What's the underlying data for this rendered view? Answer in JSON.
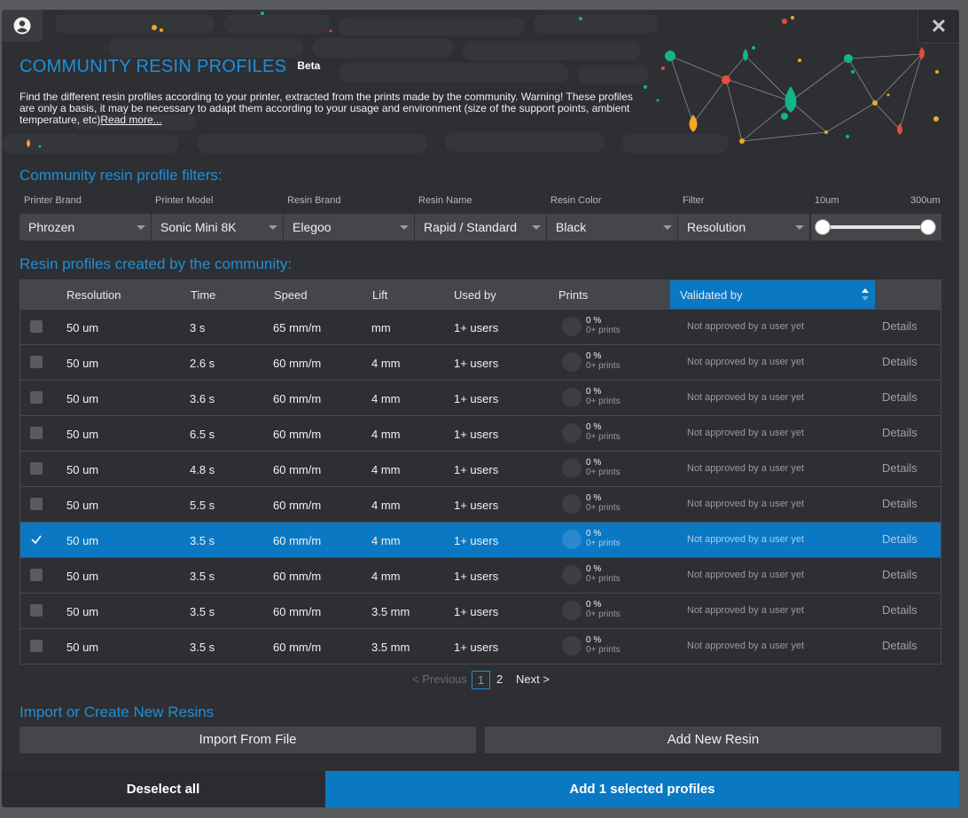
{
  "header": {
    "title": "COMMUNITY RESIN PROFILES",
    "badge": "Beta",
    "description": "Find the different resin profiles according to your printer, extracted from the prints made by the community. Warning! These profiles are only a basis, it may be necessary to adapt them according to your usage and environment (size of the support points, ambient temperature, etc)",
    "read_more": "Read more...",
    "close_icon": "close-icon",
    "user_icon": "user-circle-icon"
  },
  "filters": {
    "section_title": "Community resin profile filters:",
    "labels": {
      "printer_brand": "Printer Brand",
      "printer_model": "Printer Model",
      "resin_brand": "Resin Brand",
      "resin_name": "Resin Name",
      "resin_color": "Resin Color",
      "filter": "Filter",
      "range_min": "10um",
      "range_max": "300um"
    },
    "values": {
      "printer_brand": "Phrozen",
      "printer_model": "Sonic Mini 8K",
      "resin_brand": "Elegoo",
      "resin_name": "Rapid / Standard",
      "resin_color": "Black",
      "filter": "Resolution"
    }
  },
  "profiles": {
    "section_title": "Resin profiles created by the community:",
    "columns": {
      "resolution": "Resolution",
      "time": "Time",
      "speed": "Speed",
      "lift": "Lift",
      "used_by": "Used by",
      "prints": "Prints",
      "validated_by": "Validated by"
    },
    "rows": [
      {
        "resolution": "50 um",
        "time": "3 s",
        "speed": "65 mm/m",
        "lift": "mm",
        "used_by": "1+ users",
        "pct": "0 %",
        "prints": "0+ prints",
        "validated": "Not approved by a user yet",
        "details": "Details"
      },
      {
        "resolution": "50 um",
        "time": "2.6 s",
        "speed": "60 mm/m",
        "lift": "4 mm",
        "used_by": "1+ users",
        "pct": "0 %",
        "prints": "0+ prints",
        "validated": "Not approved by a user yet",
        "details": "Details"
      },
      {
        "resolution": "50 um",
        "time": "3.6 s",
        "speed": "60 mm/m",
        "lift": "4 mm",
        "used_by": "1+ users",
        "pct": "0 %",
        "prints": "0+ prints",
        "validated": "Not approved by a user yet",
        "details": "Details"
      },
      {
        "resolution": "50 um",
        "time": "6.5 s",
        "speed": "60 mm/m",
        "lift": "4 mm",
        "used_by": "1+ users",
        "pct": "0 %",
        "prints": "0+ prints",
        "validated": "Not approved by a user yet",
        "details": "Details"
      },
      {
        "resolution": "50 um",
        "time": "4.8 s",
        "speed": "60 mm/m",
        "lift": "4 mm",
        "used_by": "1+ users",
        "pct": "0 %",
        "prints": "0+ prints",
        "validated": "Not approved by a user yet",
        "details": "Details"
      },
      {
        "resolution": "50 um",
        "time": "5.5 s",
        "speed": "60 mm/m",
        "lift": "4 mm",
        "used_by": "1+ users",
        "pct": "0 %",
        "prints": "0+ prints",
        "validated": "Not approved by a user yet",
        "details": "Details"
      },
      {
        "resolution": "50 um",
        "time": "3.5 s",
        "speed": "60 mm/m",
        "lift": "4 mm",
        "used_by": "1+ users",
        "pct": "0 %",
        "prints": "0+ prints",
        "validated": "Not approved by a user yet",
        "details": "Details",
        "selected": true
      },
      {
        "resolution": "50 um",
        "time": "3.5 s",
        "speed": "60 mm/m",
        "lift": "4 mm",
        "used_by": "1+ users",
        "pct": "0 %",
        "prints": "0+ prints",
        "validated": "Not approved by a user yet",
        "details": "Details"
      },
      {
        "resolution": "50 um",
        "time": "3.5 s",
        "speed": "60 mm/m",
        "lift": "3.5 mm",
        "used_by": "1+ users",
        "pct": "0 %",
        "prints": "0+ prints",
        "validated": "Not approved by a user yet",
        "details": "Details"
      },
      {
        "resolution": "50 um",
        "time": "3.5 s",
        "speed": "60 mm/m",
        "lift": "3.5 mm",
        "used_by": "1+ users",
        "pct": "0 %",
        "prints": "0+ prints",
        "validated": "Not approved by a user yet",
        "details": "Details"
      }
    ]
  },
  "pagination": {
    "previous": "< Previous",
    "page1": "1",
    "page2": "2",
    "next": "Next >"
  },
  "import": {
    "section_title": "Import or Create New Resins",
    "import_label": "Import From File",
    "add_label": "Add New Resin"
  },
  "footer": {
    "deselect_label": "Deselect all",
    "add_label": "Add 1 selected profiles"
  },
  "colors": {
    "accent": "#1e8fd9",
    "selected": "#0b78c3",
    "background": "#2e2f33"
  }
}
